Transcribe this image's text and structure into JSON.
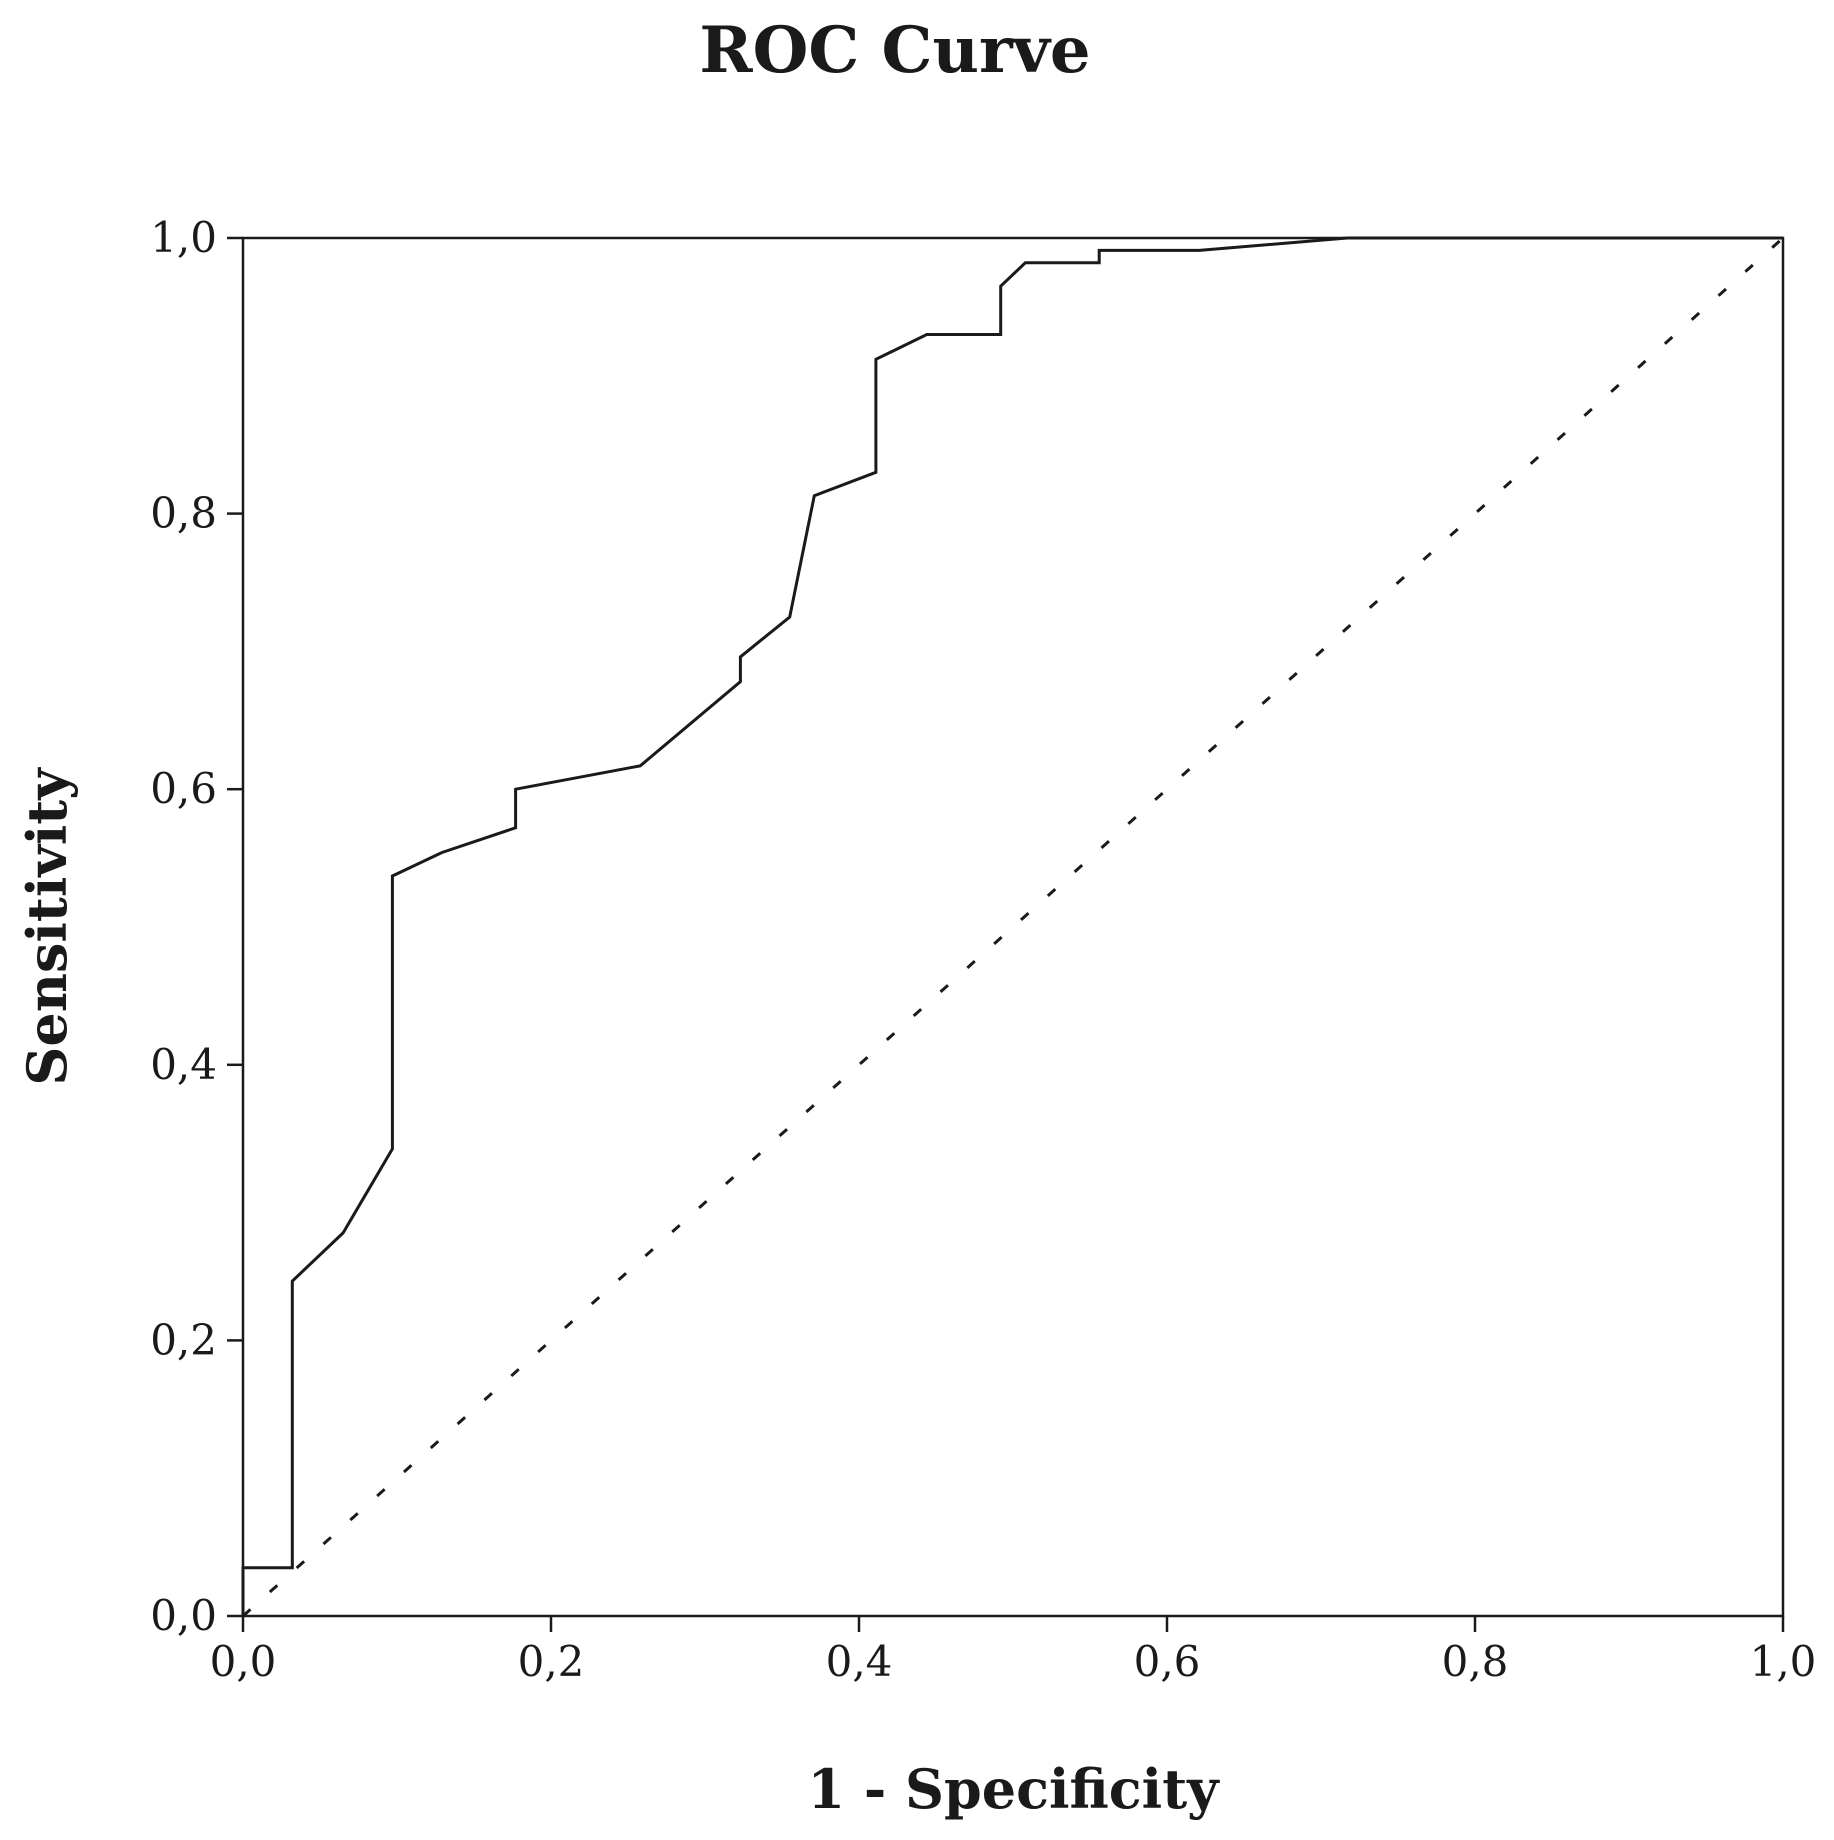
{
  "chart_data": {
    "type": "line",
    "title": "ROC Curve",
    "xlabel": "1 - Specificity",
    "ylabel": "Sensitivity",
    "xlim": [
      0,
      1
    ],
    "ylim": [
      0,
      1
    ],
    "x_ticks": [
      0,
      0.2,
      0.4,
      0.6,
      0.8,
      1.0
    ],
    "y_ticks": [
      0,
      0.2,
      0.4,
      0.6,
      0.8,
      1.0
    ],
    "x_tick_labels": [
      "0,0",
      "0,2",
      "0,4",
      "0,6",
      "0,8",
      "1,0"
    ],
    "y_tick_labels": [
      "0,0",
      "0,2",
      "0,4",
      "0,6",
      "0,8",
      "1,0"
    ],
    "grid": false,
    "colors": {
      "curve": "#1a1a1a",
      "reference": "#1a1a1a",
      "frame": "#1a1a1a"
    },
    "series": [
      {
        "style": "solid",
        "x": [
          0,
          0,
          0.032,
          0.032,
          0.065,
          0.097,
          0.097,
          0.129,
          0.177,
          0.177,
          0.258,
          0.323,
          0.323,
          0.355,
          0.371,
          0.371,
          0.411,
          0.411,
          0.444,
          0.492,
          0.492,
          0.508,
          0.556,
          0.556,
          0.621,
          0.717,
          1.0
        ],
        "y": [
          0,
          0.035,
          0.035,
          0.243,
          0.278,
          0.339,
          0.537,
          0.554,
          0.572,
          0.6,
          0.617,
          0.678,
          0.696,
          0.725,
          0.813,
          0.813,
          0.83,
          0.912,
          0.93,
          0.93,
          0.965,
          0.982,
          0.982,
          0.991,
          0.991,
          1.0,
          1.0
        ]
      },
      {
        "style": "dashed",
        "x": [
          0,
          1
        ],
        "y": [
          0,
          1
        ]
      }
    ]
  }
}
